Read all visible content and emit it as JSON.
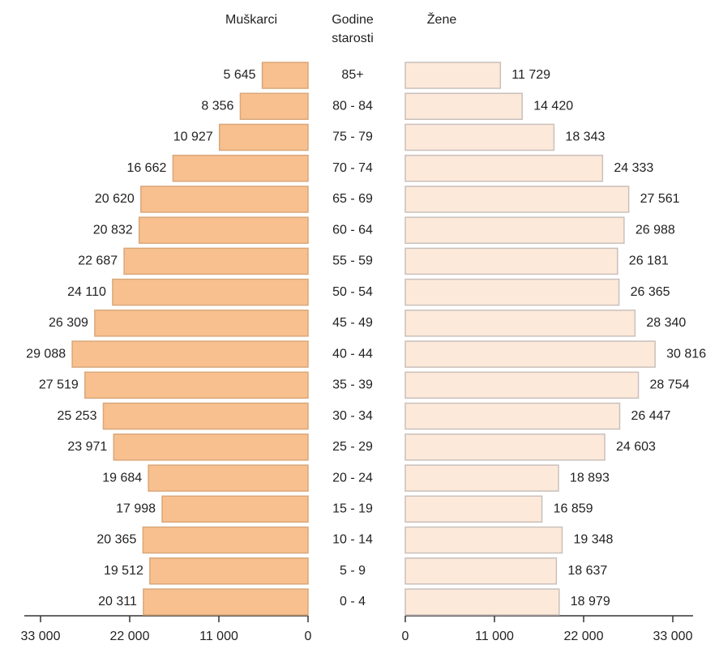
{
  "chart_data": {
    "type": "pyramid",
    "category_label": [
      "Godine",
      "starosti"
    ],
    "categories": [
      "85+",
      "80 - 84",
      "75 - 79",
      "70 - 74",
      "65 - 69",
      "60 - 64",
      "55 - 59",
      "50 - 54",
      "45 - 49",
      "40 - 44",
      "35 - 39",
      "30 - 34",
      "25 - 29",
      "20 - 24",
      "15 - 19",
      "10 - 14",
      "5 - 9",
      "0 - 4"
    ],
    "series": [
      {
        "name": "Muškarci",
        "color": "#f8c08f",
        "side": "left",
        "values": [
          5645,
          8356,
          10927,
          16662,
          20620,
          20832,
          22687,
          24110,
          26309,
          29088,
          27519,
          25253,
          23971,
          19684,
          17998,
          20365,
          19512,
          20311
        ],
        "value_labels": [
          "5 645",
          "8 356",
          "10 927",
          "16 662",
          "20 620",
          "20 832",
          "22 687",
          "24 110",
          "26 309",
          "29 088",
          "27 519",
          "25 253",
          "23 971",
          "19 684",
          "17 998",
          "20 365",
          "19 512",
          "20 311"
        ]
      },
      {
        "name": "Žene",
        "color": "#fde9da",
        "side": "right",
        "values": [
          11729,
          14420,
          18343,
          24333,
          27561,
          26988,
          26181,
          26365,
          28340,
          30816,
          28754,
          26447,
          24603,
          18893,
          16859,
          19348,
          18637,
          18979
        ],
        "value_labels": [
          "11 729",
          "14 420",
          "18 343",
          "24 333",
          "27 561",
          "26 988",
          "26 181",
          "26 365",
          "28 340",
          "30 816",
          "28 754",
          "26 447",
          "24 603",
          "18 893",
          "16 859",
          "19 348",
          "18 637",
          "18 979"
        ]
      }
    ],
    "xlim": [
      0,
      33000
    ],
    "xticks": [
      {
        "value": 0,
        "label": "0"
      },
      {
        "value": 11000,
        "label": "11 000"
      },
      {
        "value": 22000,
        "label": "22 000"
      },
      {
        "value": 33000,
        "label": "33 000"
      }
    ]
  }
}
